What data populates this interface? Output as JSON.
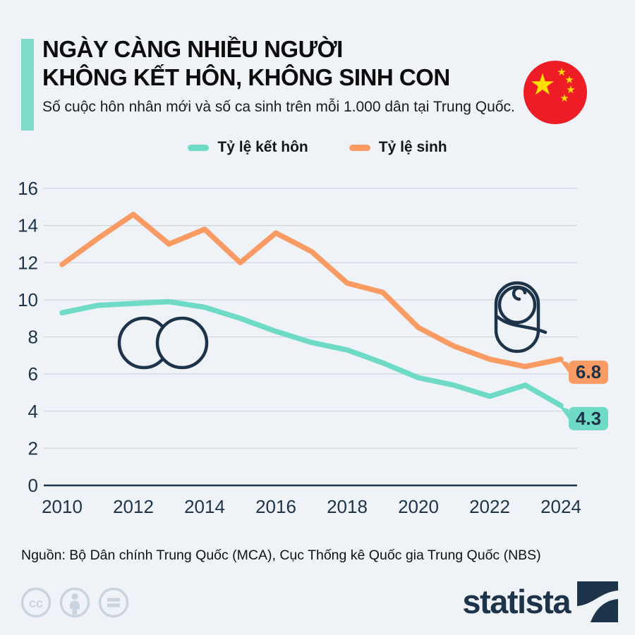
{
  "header": {
    "title_line1": "NGÀY CÀNG NHIỀU NGƯỜI",
    "title_line2": "KHÔNG KẾT HÔN, KHÔNG SINH CON",
    "subtitle": "Số cuộc hôn nhân mới và số ca sinh trên mỗi 1.000 dân tại Trung Quốc.",
    "flag_icon": "china-flag"
  },
  "legend": {
    "items": [
      {
        "label": "Tỷ lệ kết hôn",
        "color": "#6fdbc7"
      },
      {
        "label": "Tỷ lệ sinh",
        "color": "#f99b63"
      }
    ]
  },
  "chart_data": {
    "type": "line",
    "x": [
      2010,
      2011,
      2012,
      2013,
      2014,
      2015,
      2016,
      2017,
      2018,
      2019,
      2020,
      2021,
      2022,
      2023,
      2024
    ],
    "x_tick_labels": [
      "2010",
      "2012",
      "2014",
      "2016",
      "2018",
      "2020",
      "2022",
      "2024"
    ],
    "y_ticks": [
      0,
      2,
      4,
      6,
      8,
      10,
      12,
      14,
      16
    ],
    "ylim": [
      0,
      16
    ],
    "grid": true,
    "legend_position": "top",
    "series": [
      {
        "name": "Tỷ lệ kết hôn",
        "color": "#6fdbc7",
        "values": [
          9.3,
          9.7,
          9.8,
          9.9,
          9.6,
          9.0,
          8.3,
          7.7,
          7.3,
          6.6,
          5.8,
          5.4,
          4.8,
          5.4,
          4.3
        ],
        "end_label": "4.3"
      },
      {
        "name": "Tỷ lệ sinh",
        "color": "#f99b63",
        "values": [
          11.9,
          13.3,
          14.6,
          13.0,
          13.8,
          12.0,
          13.6,
          12.6,
          10.9,
          10.4,
          8.5,
          7.5,
          6.8,
          6.4,
          6.8
        ],
        "end_label": "6.8"
      }
    ],
    "annotations": [
      "wedding-rings-icon",
      "baby-icon"
    ]
  },
  "footer": {
    "source": "Nguồn: Bộ Dân chính Trung Quốc (MCA), Cục Thống kê Quốc gia Trung Quốc (NBS)",
    "license_icons": [
      "cc-icon",
      "attribution-icon",
      "equals-icon"
    ],
    "brand": "statista"
  },
  "colors": {
    "background": "#eff3f7",
    "navy": "#1d3349",
    "accent_teal": "#7ddcc8",
    "gridline": "#cfd6de",
    "flag_red": "#ee1c25",
    "flag_yellow": "#ffde00",
    "license_gray": "#c9d4de"
  }
}
